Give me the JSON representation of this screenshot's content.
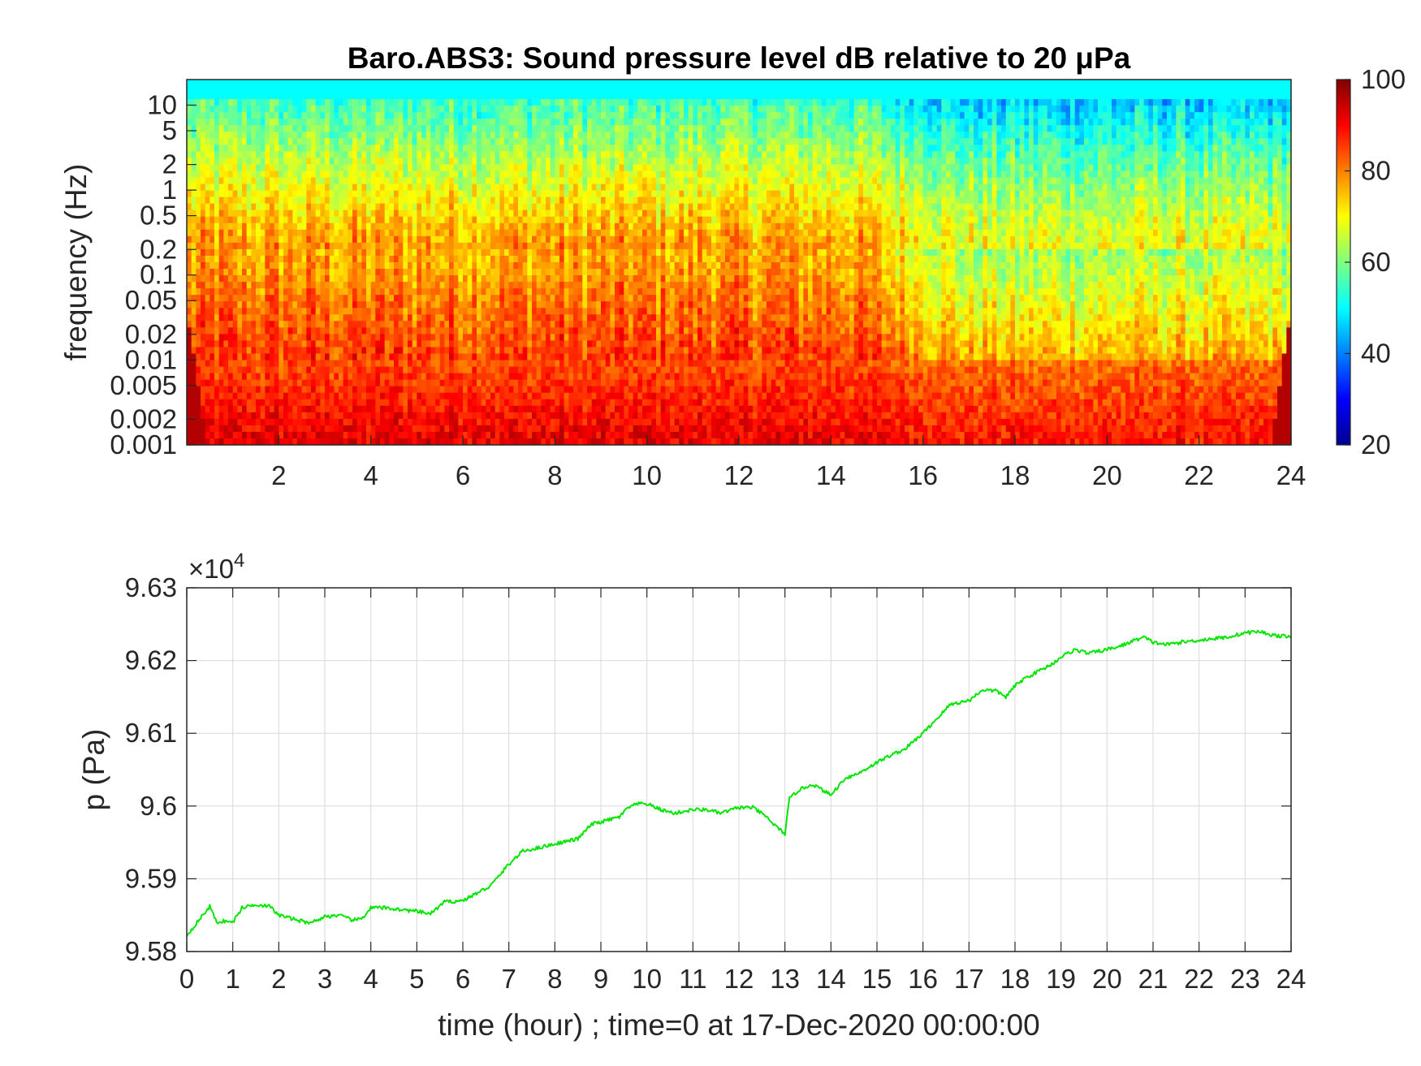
{
  "chart_data": [
    {
      "type": "heatmap",
      "title": "Baro.ABS3: Sound pressure level dB relative to 20 μPa",
      "xlabel": "",
      "ylabel": "frequency (Hz)",
      "xlim": [
        0,
        24
      ],
      "ylim": [
        0.001,
        20
      ],
      "yscale": "log",
      "x_ticks": [
        2,
        4,
        6,
        8,
        10,
        12,
        14,
        16,
        18,
        20,
        22,
        24
      ],
      "x_tick_labels": [
        "2",
        "4",
        "6",
        "8",
        "10",
        "12",
        "14",
        "16",
        "18",
        "20",
        "22",
        "24"
      ],
      "y_ticks": [
        0.001,
        0.002,
        0.005,
        0.01,
        0.02,
        0.05,
        0.1,
        0.2,
        0.5,
        1,
        2,
        5,
        10
      ],
      "y_tick_labels": [
        "0.001",
        "0.002",
        "0.005",
        "0.01",
        "0.02",
        "0.05",
        "0.1",
        "0.2",
        "0.5",
        "1",
        "2",
        "5",
        "10"
      ],
      "colormap": "jet",
      "colorbar": {
        "range": [
          20,
          100
        ],
        "ticks": [
          20,
          40,
          60,
          80,
          100
        ],
        "tick_labels": [
          "20",
          "40",
          "60",
          "80",
          "100"
        ]
      },
      "grid": false
    },
    {
      "type": "line",
      "title": "",
      "xlabel": "time (hour) ; time=0 at 17-Dec-2020 00:00:00",
      "ylabel": "p (Pa)",
      "xlim": [
        0,
        24
      ],
      "ylim": [
        95800,
        96300
      ],
      "y_exponent_base": "×10",
      "y_exponent_power": "4",
      "x_ticks": [
        0,
        1,
        2,
        3,
        4,
        5,
        6,
        7,
        8,
        9,
        10,
        11,
        12,
        13,
        14,
        15,
        16,
        17,
        18,
        19,
        20,
        21,
        22,
        23,
        24
      ],
      "x_tick_labels": [
        "0",
        "1",
        "2",
        "3",
        "4",
        "5",
        "6",
        "7",
        "8",
        "9",
        "10",
        "11",
        "12",
        "13",
        "14",
        "15",
        "16",
        "17",
        "18",
        "19",
        "20",
        "21",
        "22",
        "23",
        "24"
      ],
      "y_ticks": [
        95800,
        95900,
        96000,
        96100,
        96200,
        96300
      ],
      "y_tick_labels": [
        "9.58",
        "9.59",
        "9.6",
        "9.61",
        "9.62",
        "9.63"
      ],
      "grid": true,
      "line_color": "#00e600",
      "series": [
        {
          "x": [
            0,
            0.25,
            0.5,
            0.65,
            0.8,
            1.0,
            1.2,
            1.5,
            1.8,
            2.0,
            2.3,
            2.6,
            2.8,
            3.0,
            3.3,
            3.6,
            3.8,
            4.0,
            4.3,
            4.6,
            5.0,
            5.3,
            5.6,
            6.0,
            6.3,
            6.6,
            7.0,
            7.3,
            7.6,
            8.0,
            8.5,
            8.8,
            9.0,
            9.4,
            9.6,
            9.8,
            10.0,
            10.3,
            10.6,
            11.0,
            11.3,
            11.6,
            12.0,
            12.3,
            12.6,
            12.8,
            13.0,
            13.1,
            13.3,
            13.6,
            14.0,
            14.3,
            14.6,
            15.0,
            15.3,
            15.6,
            16.0,
            16.3,
            16.6,
            17.0,
            17.3,
            17.6,
            17.8,
            18.0,
            18.2,
            18.5,
            18.8,
            19.0,
            19.3,
            19.6,
            20.0,
            20.3,
            20.6,
            20.8,
            21.0,
            21.3,
            21.6,
            22.0,
            22.3,
            22.6,
            23.0,
            23.3,
            23.6,
            24.0
          ],
          "y": [
            95822,
            95842,
            95862,
            95840,
            95842,
            95840,
            95860,
            95865,
            95862,
            95850,
            95845,
            95840,
            95842,
            95848,
            95850,
            95843,
            95845,
            95860,
            95860,
            95858,
            95855,
            95852,
            95868,
            95870,
            95880,
            95890,
            95920,
            95938,
            95942,
            95948,
            95955,
            95975,
            95978,
            95985,
            95998,
            96003,
            96003,
            95995,
            95990,
            95995,
            95995,
            95990,
            95998,
            95998,
            95985,
            95972,
            95962,
            96010,
            96022,
            96030,
            96015,
            96038,
            96045,
            96060,
            96070,
            96078,
            96100,
            96120,
            96140,
            96145,
            96160,
            96158,
            96150,
            96165,
            96175,
            96185,
            96195,
            96205,
            96215,
            96210,
            96215,
            96220,
            96228,
            96232,
            96225,
            96222,
            96225,
            96228,
            96230,
            96232,
            96238,
            96240,
            96235,
            96232
          ]
        }
      ]
    }
  ]
}
